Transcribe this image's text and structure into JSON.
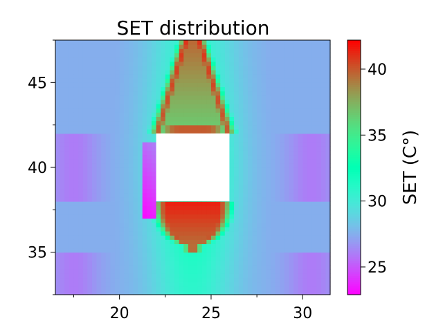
{
  "chart_data": {
    "type": "heatmap",
    "title": "SET distribution",
    "xlabel": "",
    "ylabel": "",
    "xlim": [
      16.5,
      31.5
    ],
    "ylim": [
      32.5,
      47.5
    ],
    "x_ticks": [
      20,
      25,
      30
    ],
    "y_ticks": [
      35,
      40,
      45
    ],
    "colorbar": {
      "label": "SET (C°)",
      "range": [
        22.9,
        42.2
      ],
      "ticks": [
        25,
        30,
        35,
        40
      ],
      "colormap": "rainbow"
    },
    "masked_region": {
      "x": [
        22.0,
        26.0
      ],
      "y": [
        38.0,
        42.0
      ]
    },
    "background_value": 27.5,
    "features": [
      {
        "kind": "hot-arch-top",
        "x_center": 24.0,
        "y_range": [
          42.0,
          47.5
        ],
        "peak_value": 41.0
      },
      {
        "kind": "hot-lobe-bottom",
        "x_center": 24.0,
        "y_range": [
          35.5,
          38.0
        ],
        "peak_value": 41.5
      },
      {
        "kind": "cold-strip-left",
        "x_range": [
          21.2,
          22.0
        ],
        "y_range": [
          37.0,
          41.5
        ],
        "min_value": 23.0
      },
      {
        "kind": "warm-vertical-band",
        "x_center": 24.0,
        "value": 33.0
      }
    ]
  }
}
